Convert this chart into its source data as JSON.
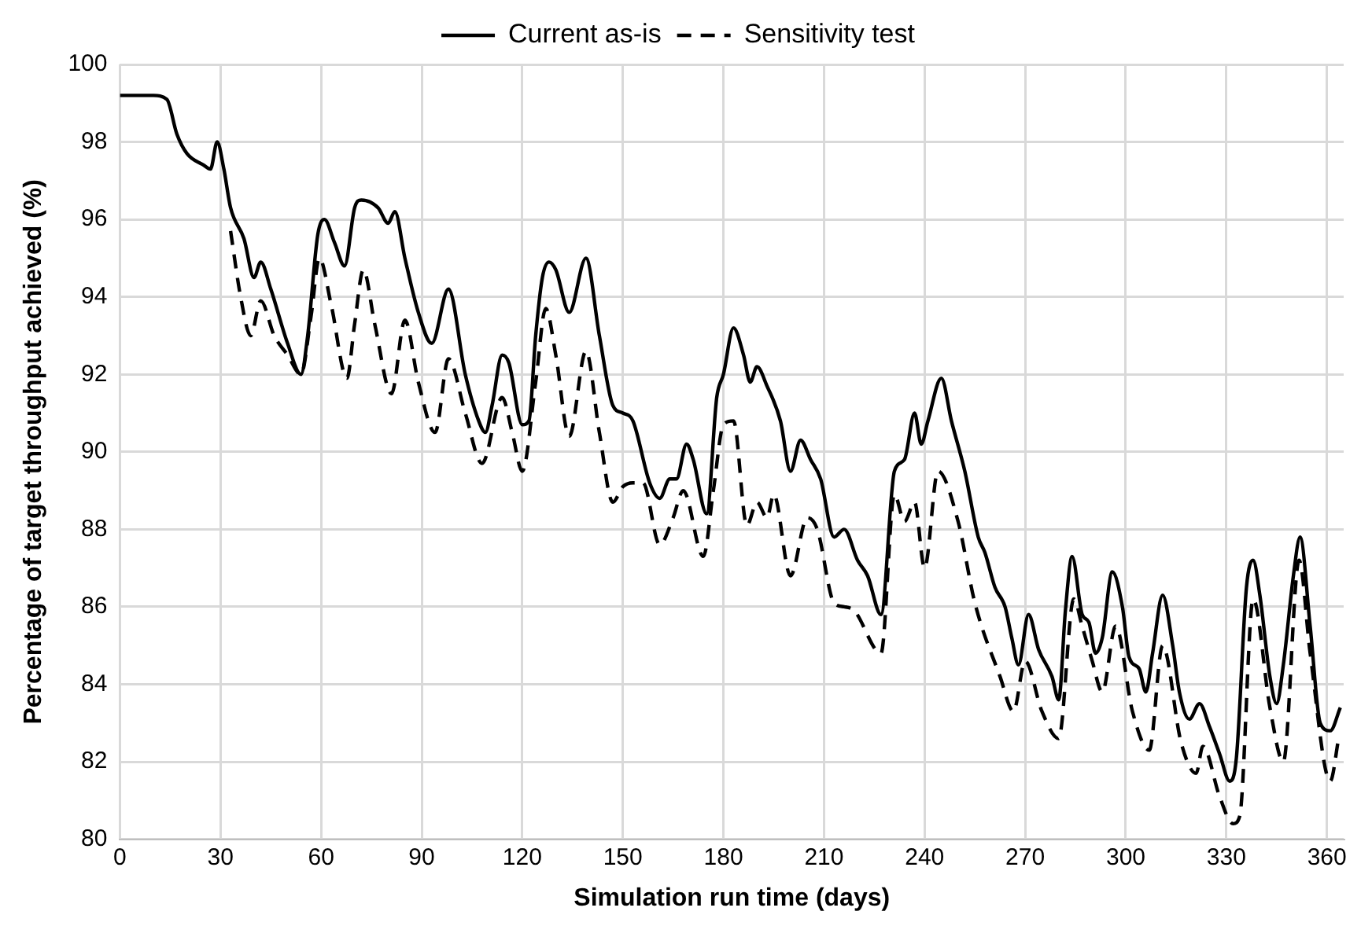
{
  "chart_data": {
    "type": "line",
    "xlabel": "Simulation run time (days)",
    "ylabel": "Percentage of target throughput achieved (%)",
    "xlim": [
      0,
      365
    ],
    "xticks": [
      0,
      30,
      60,
      90,
      120,
      150,
      180,
      210,
      240,
      270,
      300,
      330,
      360
    ],
    "ylim": [
      80,
      100
    ],
    "yticks": [
      80,
      82,
      84,
      86,
      88,
      90,
      92,
      94,
      96,
      98,
      100
    ],
    "grid": true,
    "legend": "top",
    "marker": "none",
    "series": [
      {
        "name": "Current as-is",
        "color": "#000000",
        "line_style": "solid",
        "x": [
          0,
          10,
          14,
          17,
          20,
          25,
          27,
          29,
          31,
          33,
          37,
          40,
          42,
          45,
          50,
          54,
          56,
          59,
          61,
          64,
          67,
          70,
          72,
          77,
          80,
          82,
          85,
          89,
          93,
          98,
          103,
          107,
          109,
          111,
          114,
          116,
          120,
          122,
          124,
          126,
          128,
          130,
          134,
          139,
          143,
          147,
          150,
          153,
          158,
          161,
          164,
          166,
          169,
          171,
          175,
          178,
          180,
          183,
          186,
          188,
          190,
          193,
          197,
          200,
          203,
          206,
          209,
          213,
          216,
          220,
          223,
          227,
          231,
          234,
          237,
          239,
          241,
          245,
          248,
          252,
          256,
          258,
          261,
          264,
          266,
          268,
          271,
          274,
          278,
          280,
          282,
          284,
          287,
          289,
          291,
          293,
          296,
          299,
          301,
          304,
          306,
          308,
          311,
          314,
          316,
          319,
          322,
          325,
          328,
          331,
          333,
          336,
          338,
          340,
          343,
          345,
          347,
          350,
          352,
          355,
          358,
          361,
          364
        ],
        "values": [
          99.2,
          99.2,
          99.1,
          98.2,
          97.7,
          97.4,
          97.3,
          98.0,
          97.3,
          96.3,
          95.5,
          94.5,
          94.9,
          94.2,
          92.8,
          92.0,
          93.0,
          95.6,
          96.0,
          95.4,
          94.8,
          96.3,
          96.5,
          96.3,
          95.9,
          96.2,
          95.0,
          93.6,
          92.8,
          94.2,
          92.0,
          90.8,
          90.5,
          91.2,
          92.5,
          92.3,
          90.7,
          90.8,
          93.0,
          94.5,
          94.9,
          94.7,
          93.6,
          95.0,
          93.0,
          91.2,
          91.0,
          90.8,
          89.2,
          88.8,
          89.3,
          89.3,
          90.2,
          89.8,
          88.4,
          91.4,
          92.0,
          93.2,
          92.5,
          91.8,
          92.2,
          91.7,
          90.8,
          89.5,
          90.3,
          89.8,
          89.3,
          87.8,
          88.0,
          87.2,
          86.8,
          85.8,
          89.5,
          89.8,
          91.0,
          90.2,
          90.8,
          91.9,
          90.8,
          89.5,
          87.8,
          87.4,
          86.5,
          86.0,
          85.2,
          84.5,
          85.8,
          84.9,
          84.2,
          83.6,
          85.9,
          87.3,
          85.8,
          85.6,
          84.8,
          85.2,
          86.9,
          86.0,
          84.7,
          84.4,
          83.8,
          84.8,
          86.3,
          85.0,
          83.8,
          83.1,
          83.5,
          82.9,
          82.2,
          81.5,
          82.1,
          86.5,
          87.2,
          86.3,
          84.2,
          83.5,
          84.5,
          86.8,
          87.8,
          85.5,
          83.0,
          82.8,
          83.4
        ]
      },
      {
        "name": "Sensitivity test",
        "color": "#000000",
        "line_style": "dashed",
        "x": [
          33,
          36,
          39,
          42,
          46,
          50,
          54,
          57,
          59.5,
          63,
          67.7,
          70,
          72.6,
          76,
          81,
          85,
          89,
          94,
          98,
          103,
          108,
          114,
          117,
          120,
          124,
          127,
          130,
          134,
          139,
          143,
          147,
          150,
          153,
          156,
          161,
          165,
          168,
          174,
          177,
          180,
          183,
          187,
          190,
          193,
          195,
          200,
          205,
          208,
          213,
          216,
          219,
          227,
          231,
          234,
          237,
          240,
          244,
          250,
          255,
          262.5,
          266.5,
          270,
          275,
          280,
          284.5,
          287,
          290,
          293,
          297,
          302,
          307,
          311,
          316.5,
          321,
          323,
          328,
          332,
          334,
          338,
          343,
          347,
          351.7,
          355,
          361,
          363.5
        ],
        "values": [
          95.7,
          94.0,
          93.0,
          93.9,
          93.0,
          92.5,
          92.0,
          93.5,
          95.0,
          93.8,
          91.9,
          93.3,
          94.7,
          93.3,
          91.5,
          93.4,
          91.8,
          90.5,
          92.4,
          91.0,
          89.7,
          91.4,
          90.5,
          89.5,
          91.8,
          93.7,
          92.5,
          90.4,
          92.6,
          90.5,
          88.7,
          89.1,
          89.2,
          89.2,
          87.6,
          88.3,
          89.0,
          87.3,
          89.0,
          90.7,
          90.8,
          88.1,
          88.7,
          88.3,
          88.9,
          86.8,
          88.3,
          88.0,
          86.1,
          86.0,
          85.9,
          84.8,
          88.9,
          88.2,
          88.7,
          87.0,
          89.5,
          88.2,
          86.1,
          84.2,
          83.3,
          84.6,
          83.3,
          82.6,
          86.2,
          85.5,
          84.6,
          83.8,
          85.5,
          83.3,
          82.3,
          85.0,
          82.5,
          81.7,
          82.4,
          81.1,
          80.4,
          80.6,
          86.2,
          83.4,
          82.0,
          87.2,
          84.8,
          81.5,
          82.6
        ]
      }
    ]
  }
}
